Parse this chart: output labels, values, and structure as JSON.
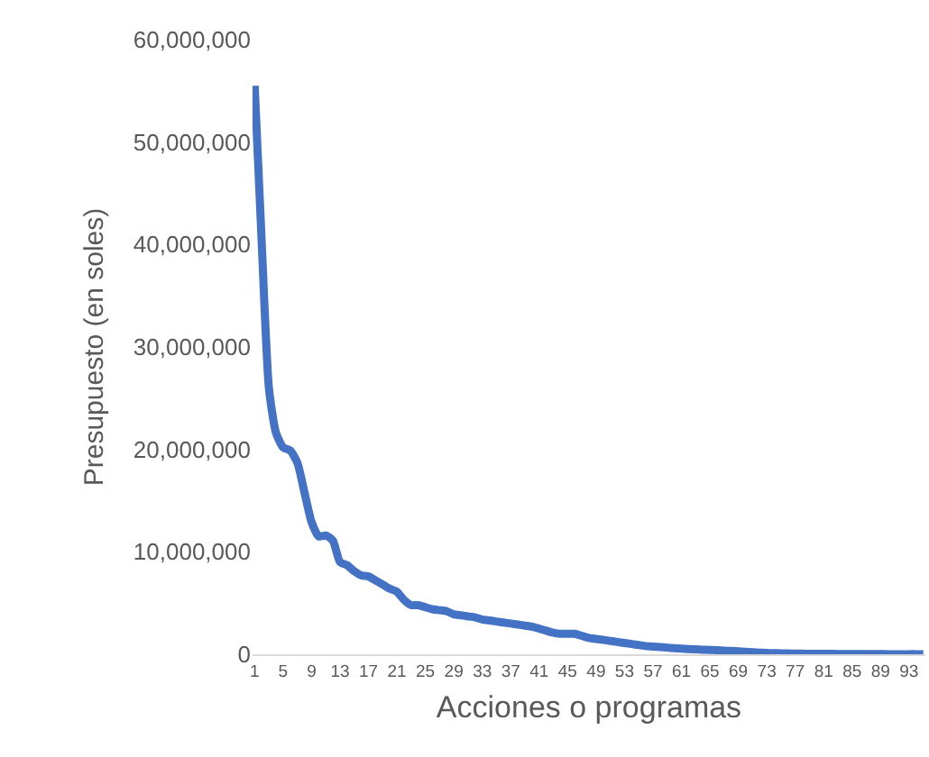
{
  "chart_data": {
    "type": "line",
    "xlabel": "Acciones o programas",
    "ylabel": "Presupuesto (en soles)",
    "categories": [
      "1",
      null,
      null,
      null,
      "5",
      null,
      null,
      null,
      "9",
      null,
      null,
      null,
      "13",
      null,
      null,
      null,
      "17",
      null,
      null,
      null,
      "21",
      null,
      null,
      null,
      "25",
      null,
      null,
      null,
      "29",
      null,
      null,
      null,
      "33",
      null,
      null,
      null,
      "37",
      null,
      null,
      null,
      "41",
      null,
      null,
      null,
      "45",
      null,
      null,
      null,
      "49",
      null,
      null,
      null,
      "53",
      null,
      null,
      null,
      "57",
      null,
      null,
      null,
      "61",
      null,
      null,
      null,
      "65",
      null,
      null,
      null,
      "69",
      null,
      null,
      null,
      "73",
      null,
      null,
      null,
      "77",
      null,
      null,
      null,
      "81",
      null,
      null,
      null,
      "85",
      null,
      null,
      null,
      "89",
      null,
      null,
      null,
      "93",
      null,
      null
    ],
    "series": [
      {
        "color": "#4472c4",
        "values": [
          55500000,
          40000000,
          26000000,
          21600000,
          20200000,
          19900000,
          18700000,
          15800000,
          12900000,
          11500000,
          11600000,
          11100000,
          9000000,
          8700000,
          8100000,
          7700000,
          7600000,
          7200000,
          6800000,
          6400000,
          6100000,
          5300000,
          4800000,
          4800000,
          4600000,
          4400000,
          4300000,
          4200000,
          3900000,
          3800000,
          3700000,
          3600000,
          3400000,
          3300000,
          3200000,
          3100000,
          3000000,
          2900000,
          2800000,
          2700000,
          2500000,
          2300000,
          2100000,
          2000000,
          2000000,
          2000000,
          1800000,
          1600000,
          1500000,
          1400000,
          1300000,
          1200000,
          1100000,
          1000000,
          900000,
          800000,
          750000,
          700000,
          650000,
          600000,
          550000,
          500000,
          480000,
          450000,
          420000,
          400000,
          350000,
          320000,
          280000,
          250000,
          200000,
          160000,
          130000,
          110000,
          90000,
          80000,
          70000,
          60000,
          50000,
          50000,
          40000,
          40000,
          30000,
          30000,
          30000,
          20000,
          20000,
          20000,
          20000,
          10000,
          10000,
          10000,
          10000,
          10000,
          0
        ]
      }
    ],
    "ylim": [
      0,
      60000000
    ],
    "yticks": [
      {
        "value": 0,
        "label": "0"
      },
      {
        "value": 10000000,
        "label": "10,000,000"
      },
      {
        "value": 20000000,
        "label": "20,000,000"
      },
      {
        "value": 30000000,
        "label": "30,000,000"
      },
      {
        "value": 40000000,
        "label": "40,000,000"
      },
      {
        "value": 50000000,
        "label": "50,000,000"
      },
      {
        "value": 60000000,
        "label": "60,000,000"
      }
    ],
    "grid": false,
    "legend": false,
    "marker": "none",
    "line_style": "solid"
  }
}
